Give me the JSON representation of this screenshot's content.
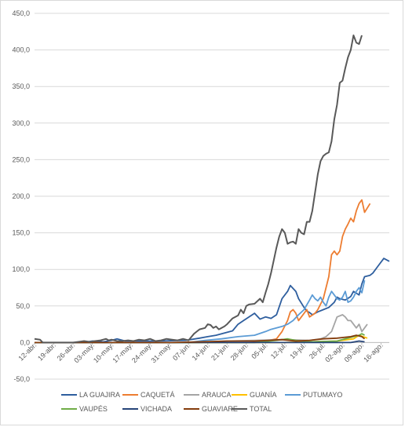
{
  "chart_data": {
    "type": "line",
    "title": "",
    "xlabel": "",
    "ylabel": "",
    "ylim": [
      -50,
      450
    ],
    "y_ticks": [
      "-50,0",
      "0,0",
      "50,0",
      "100,0",
      "150,0",
      "200,0",
      "250,0",
      "300,0",
      "350,0",
      "400,0",
      "450,0"
    ],
    "x_tick_labels": [
      "12-abr.",
      "19-abr.",
      "26-abr.",
      "03-may.",
      "10-may.",
      "17-may.",
      "24-may.",
      "31-may.",
      "07-jun.",
      "14-jun.",
      "21-jun.",
      "28-jun.",
      "05-jul.",
      "12-jul.",
      "19-jul.",
      "26-jul.",
      "02-ago.",
      "09-ago.",
      "16-ago."
    ],
    "grid": true,
    "legend_position": "bottom",
    "series": [
      {
        "name": "LA GUAJIRA",
        "color": "#2e5e9e",
        "points": [
          [
            0,
            0
          ],
          [
            18,
            0
          ],
          [
            21,
            2
          ],
          [
            25,
            1
          ],
          [
            28,
            3
          ],
          [
            30,
            5
          ],
          [
            33,
            2
          ],
          [
            38,
            2
          ],
          [
            45,
            2
          ],
          [
            55,
            3
          ],
          [
            60,
            6
          ],
          [
            63,
            8
          ],
          [
            66,
            10
          ],
          [
            68,
            12
          ],
          [
            70,
            14
          ],
          [
            72,
            16
          ],
          [
            74,
            25
          ],
          [
            76,
            30
          ],
          [
            78,
            35
          ],
          [
            80,
            40
          ],
          [
            82,
            32
          ],
          [
            84,
            35
          ],
          [
            86,
            33
          ],
          [
            88,
            38
          ],
          [
            90,
            60
          ],
          [
            92,
            70
          ],
          [
            93,
            78
          ],
          [
            95,
            70
          ],
          [
            96,
            60
          ],
          [
            98,
            48
          ],
          [
            99,
            43
          ],
          [
            100,
            41
          ],
          [
            101,
            38
          ],
          [
            103,
            42
          ],
          [
            105,
            45
          ],
          [
            107,
            48
          ],
          [
            109,
            55
          ],
          [
            110,
            62
          ],
          [
            111,
            60
          ],
          [
            113,
            58
          ],
          [
            115,
            63
          ],
          [
            116,
            70
          ],
          [
            118,
            65
          ],
          [
            119,
            80
          ],
          [
            120,
            90
          ],
          [
            122,
            92
          ],
          [
            123,
            95
          ],
          [
            125,
            105
          ],
          [
            127,
            115
          ],
          [
            129,
            111
          ]
        ]
      },
      {
        "name": "CAQUETÁ",
        "color": "#ed7d31",
        "points": [
          [
            0,
            0
          ],
          [
            78,
            0
          ],
          [
            84,
            2
          ],
          [
            88,
            5
          ],
          [
            90,
            15
          ],
          [
            92,
            30
          ],
          [
            93,
            42
          ],
          [
            94,
            45
          ],
          [
            95,
            40
          ],
          [
            96,
            30
          ],
          [
            97,
            35
          ],
          [
            99,
            45
          ],
          [
            100,
            35
          ],
          [
            102,
            40
          ],
          [
            103,
            45
          ],
          [
            105,
            60
          ],
          [
            107,
            90
          ],
          [
            108,
            120
          ],
          [
            109,
            125
          ],
          [
            110,
            120
          ],
          [
            111,
            125
          ],
          [
            112,
            145
          ],
          [
            113,
            155
          ],
          [
            114,
            162
          ],
          [
            115,
            170
          ],
          [
            116,
            165
          ],
          [
            117,
            180
          ],
          [
            118,
            190
          ],
          [
            119,
            195
          ],
          [
            120,
            178
          ],
          [
            122,
            190
          ]
        ]
      },
      {
        "name": "ARAUCA",
        "color": "#a5a5a5",
        "points": [
          [
            0,
            0
          ],
          [
            60,
            0
          ],
          [
            70,
            2
          ],
          [
            80,
            3
          ],
          [
            90,
            4
          ],
          [
            100,
            3
          ],
          [
            104,
            5
          ],
          [
            106,
            8
          ],
          [
            108,
            15
          ],
          [
            110,
            35
          ],
          [
            112,
            38
          ],
          [
            113,
            35
          ],
          [
            114,
            30
          ],
          [
            115,
            30
          ],
          [
            117,
            20
          ],
          [
            118,
            25
          ],
          [
            119,
            15
          ],
          [
            121,
            25
          ]
        ]
      },
      {
        "name": "GUANÍA",
        "color": "#ffc000",
        "points": [
          [
            0,
            0
          ],
          [
            90,
            0
          ],
          [
            100,
            1
          ],
          [
            110,
            2
          ],
          [
            116,
            5
          ],
          [
            118,
            10
          ],
          [
            121,
            6
          ]
        ]
      },
      {
        "name": "PUTUMAYO",
        "color": "#5b9bd5",
        "points": [
          [
            0,
            0
          ],
          [
            56,
            0
          ],
          [
            62,
            3
          ],
          [
            68,
            5
          ],
          [
            74,
            8
          ],
          [
            80,
            10
          ],
          [
            84,
            15
          ],
          [
            86,
            18
          ],
          [
            88,
            20
          ],
          [
            90,
            22
          ],
          [
            92,
            25
          ],
          [
            94,
            30
          ],
          [
            96,
            38
          ],
          [
            98,
            45
          ],
          [
            100,
            58
          ],
          [
            101,
            65
          ],
          [
            102,
            60
          ],
          [
            103,
            57
          ],
          [
            104,
            62
          ],
          [
            105,
            55
          ],
          [
            106,
            50
          ],
          [
            107,
            62
          ],
          [
            108,
            70
          ],
          [
            109,
            65
          ],
          [
            110,
            60
          ],
          [
            111,
            58
          ],
          [
            112,
            62
          ],
          [
            113,
            70
          ],
          [
            114,
            55
          ],
          [
            115,
            57
          ],
          [
            116,
            62
          ],
          [
            117,
            70
          ],
          [
            118,
            75
          ],
          [
            119,
            68
          ],
          [
            120,
            85
          ]
        ]
      },
      {
        "name": "VAUPÉS",
        "color": "#70ad47",
        "points": [
          [
            0,
            0
          ],
          [
            80,
            0
          ],
          [
            88,
            3
          ],
          [
            92,
            5
          ],
          [
            95,
            3
          ],
          [
            100,
            1
          ],
          [
            110,
            2
          ],
          [
            116,
            8
          ],
          [
            118,
            10
          ],
          [
            119,
            12
          ],
          [
            120,
            10
          ]
        ]
      },
      {
        "name": "VICHADA",
        "color": "#264478",
        "points": [
          [
            0,
            0
          ],
          [
            115,
            0
          ],
          [
            118,
            2
          ],
          [
            120,
            1
          ]
        ]
      },
      {
        "name": "GUAVIARE",
        "color": "#843c0c",
        "points": [
          [
            0,
            0
          ],
          [
            50,
            0
          ],
          [
            60,
            1
          ],
          [
            70,
            2
          ],
          [
            80,
            2
          ],
          [
            85,
            3
          ],
          [
            90,
            4
          ],
          [
            95,
            2
          ],
          [
            100,
            3
          ],
          [
            105,
            5
          ],
          [
            110,
            6
          ],
          [
            115,
            8
          ],
          [
            117,
            10
          ],
          [
            119,
            8
          ],
          [
            120,
            5
          ]
        ]
      },
      {
        "name": "TOTAL",
        "color": "#595959",
        "points": [
          [
            0,
            5
          ],
          [
            2,
            4
          ],
          [
            3,
            0
          ],
          [
            6,
            0
          ],
          [
            12,
            0
          ],
          [
            14,
            0
          ],
          [
            16,
            1
          ],
          [
            18,
            2
          ],
          [
            20,
            1
          ],
          [
            22,
            2
          ],
          [
            24,
            3
          ],
          [
            26,
            5
          ],
          [
            27,
            3
          ],
          [
            28,
            4
          ],
          [
            29,
            3
          ],
          [
            30,
            2
          ],
          [
            32,
            2
          ],
          [
            34,
            3
          ],
          [
            36,
            2
          ],
          [
            38,
            4
          ],
          [
            40,
            3
          ],
          [
            42,
            5
          ],
          [
            44,
            2
          ],
          [
            46,
            3
          ],
          [
            48,
            5
          ],
          [
            50,
            4
          ],
          [
            52,
            3
          ],
          [
            54,
            5
          ],
          [
            56,
            3
          ],
          [
            58,
            12
          ],
          [
            59,
            15
          ],
          [
            60,
            18
          ],
          [
            62,
            20
          ],
          [
            63,
            25
          ],
          [
            64,
            24
          ],
          [
            65,
            20
          ],
          [
            66,
            22
          ],
          [
            67,
            18
          ],
          [
            68,
            20
          ],
          [
            69,
            22
          ],
          [
            70,
            25
          ],
          [
            72,
            33
          ],
          [
            74,
            37
          ],
          [
            75,
            45
          ],
          [
            76,
            40
          ],
          [
            77,
            50
          ],
          [
            78,
            52
          ],
          [
            80,
            53
          ],
          [
            82,
            60
          ],
          [
            83,
            55
          ],
          [
            84,
            68
          ],
          [
            85,
            80
          ],
          [
            86,
            95
          ],
          [
            88,
            130
          ],
          [
            89,
            145
          ],
          [
            90,
            155
          ],
          [
            91,
            150
          ],
          [
            92,
            135
          ],
          [
            93,
            137
          ],
          [
            94,
            138
          ],
          [
            95,
            135
          ],
          [
            96,
            155
          ],
          [
            97,
            150
          ],
          [
            98,
            148
          ],
          [
            99,
            165
          ],
          [
            100,
            165
          ],
          [
            101,
            180
          ],
          [
            102,
            205
          ],
          [
            103,
            230
          ],
          [
            104,
            248
          ],
          [
            105,
            255
          ],
          [
            106,
            258
          ],
          [
            107,
            260
          ],
          [
            108,
            275
          ],
          [
            109,
            305
          ],
          [
            110,
            325
          ],
          [
            111,
            355
          ],
          [
            112,
            358
          ],
          [
            113,
            375
          ],
          [
            114,
            390
          ],
          [
            115,
            400
          ],
          [
            116,
            420
          ],
          [
            117,
            410
          ],
          [
            118,
            408
          ],
          [
            119,
            420
          ]
        ]
      }
    ]
  }
}
